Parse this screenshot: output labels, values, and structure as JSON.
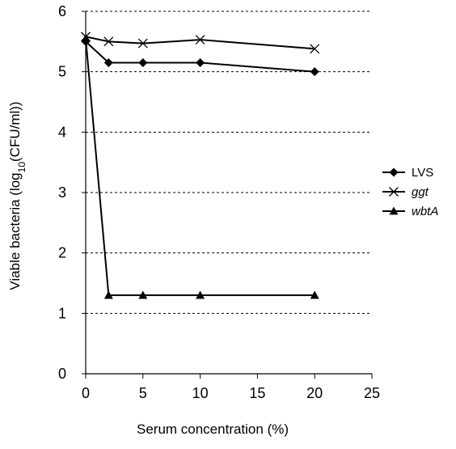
{
  "chart_data": {
    "type": "line",
    "title": "",
    "xlabel": "Serum concentration (%)",
    "ylabel": {
      "prefix": "Viable bacteria (log",
      "sub": "10",
      "suffix": "(CFU/ml))"
    },
    "xlim": [
      0,
      25
    ],
    "ylim": [
      0,
      6
    ],
    "x_ticks": [
      "0",
      "5",
      "10",
      "15",
      "20",
      "25"
    ],
    "y_ticks": [
      "0",
      "1",
      "2",
      "3",
      "4",
      "5",
      "6"
    ],
    "grid": "horizontal-dashed",
    "legend_position": "right",
    "series": [
      {
        "name": "LVS",
        "italic": false,
        "marker": "diamond",
        "color": "#000000",
        "x": [
          0,
          2,
          5,
          10,
          20
        ],
        "y": [
          5.5,
          5.15,
          5.15,
          5.15,
          5.0
        ]
      },
      {
        "name": "ggt",
        "italic": true,
        "marker": "cross",
        "color": "#000000",
        "x": [
          0,
          2,
          5,
          10,
          20
        ],
        "y": [
          5.58,
          5.5,
          5.47,
          5.53,
          5.38
        ]
      },
      {
        "name": "wbtA",
        "italic": true,
        "marker": "triangle",
        "color": "#000000",
        "x": [
          0,
          2,
          5,
          10,
          20
        ],
        "y": [
          5.55,
          1.3,
          1.3,
          1.3,
          1.3
        ]
      }
    ]
  }
}
